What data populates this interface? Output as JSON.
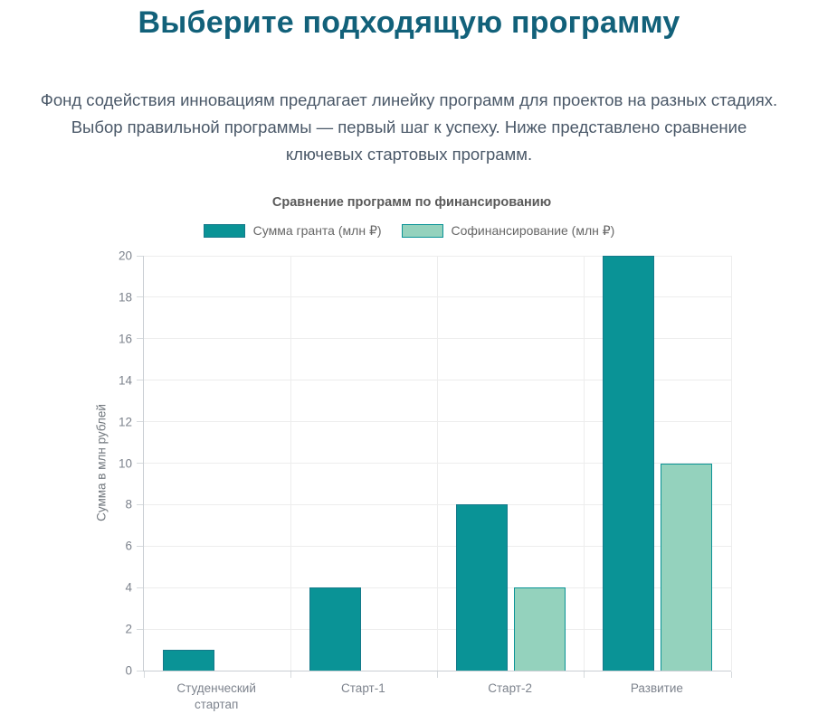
{
  "page": {
    "title": "Выберите подходящую программу",
    "intro_lines": [
      "Фонд содействия инновациям предлагает линейку программ для проектов на разных стадиях.",
      "Выбор правильной программы — первый шаг к успеху. Ниже представлено сравнение",
      "ключевых стартовых программ."
    ]
  },
  "colors": {
    "heading": "#12617a",
    "body_text": "#4a5868",
    "axis_text": "#7d838d",
    "grant_fill": "#0a9396",
    "grant_border": "#15798a",
    "cofinancing_fill": "#94d2bd",
    "cofinancing_border": "#0a9396"
  },
  "chart_data": {
    "type": "bar",
    "title": "Сравнение программ по финансированию",
    "categories": [
      "Студенческий стартап",
      "Старт-1",
      "Старт-2",
      "Развитие"
    ],
    "series": [
      {
        "name": "Сумма гранта (млн ₽)",
        "values": [
          1,
          4,
          8,
          20
        ],
        "fill": "#0a9396",
        "border": "#15798a"
      },
      {
        "name": "Софинансирование (млн ₽)",
        "values": [
          0,
          0,
          4,
          10
        ],
        "fill": "#94d2bd",
        "border": "#0a9396"
      }
    ],
    "xlabel": "",
    "ylabel": "Сумма в млн рублей",
    "ylim": [
      0,
      20
    ],
    "ytick_step": 2,
    "grid": true,
    "legend_position": "top"
  }
}
